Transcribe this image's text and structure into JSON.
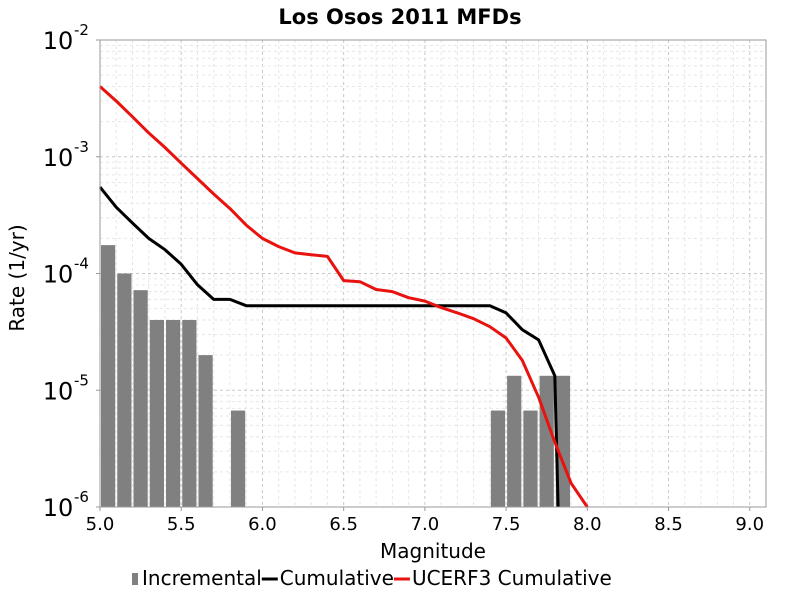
{
  "chart_data": {
    "type": "bar+line",
    "title": "Los Osos 2011 MFDs",
    "xlabel": "Magnitude",
    "ylabel": "Rate (1/yr)",
    "xlim": [
      5.0,
      9.1
    ],
    "ylim": [
      1e-06,
      0.01
    ],
    "yscale": "log",
    "grid": true,
    "legend_position": "bottom",
    "xticks": [
      "5.0",
      "5.5",
      "6.0",
      "6.5",
      "7.0",
      "7.5",
      "8.0",
      "8.5",
      "9.0"
    ],
    "yticks": [
      {
        "base": "10",
        "exp": "-6"
      },
      {
        "base": "10",
        "exp": "-5"
      },
      {
        "base": "10",
        "exp": "-4"
      },
      {
        "base": "10",
        "exp": "-3"
      },
      {
        "base": "10",
        "exp": "-2"
      }
    ],
    "series": [
      {
        "name": "Incremental",
        "kind": "bar",
        "color": "#808080",
        "bin_width": 0.1,
        "points": [
          [
            5.05,
            0.000175
          ],
          [
            5.15,
            0.0001
          ],
          [
            5.25,
            7.2e-05
          ],
          [
            5.35,
            4e-05
          ],
          [
            5.45,
            4e-05
          ],
          [
            5.55,
            4e-05
          ],
          [
            5.65,
            2e-05
          ],
          [
            5.85,
            6.7e-06
          ],
          [
            7.45,
            6.7e-06
          ],
          [
            7.55,
            1.33e-05
          ],
          [
            7.65,
            6.7e-06
          ],
          [
            7.75,
            1.33e-05
          ],
          [
            7.85,
            1.33e-05
          ]
        ]
      },
      {
        "name": "Cumulative",
        "kind": "line",
        "color": "#000000",
        "points": [
          [
            5.0,
            0.00055
          ],
          [
            5.1,
            0.00037
          ],
          [
            5.2,
            0.00027
          ],
          [
            5.3,
            0.0002
          ],
          [
            5.4,
            0.00016
          ],
          [
            5.5,
            0.00012
          ],
          [
            5.6,
            8e-05
          ],
          [
            5.7,
            6e-05
          ],
          [
            5.8,
            6e-05
          ],
          [
            5.9,
            5.3e-05
          ],
          [
            6.0,
            5.3e-05
          ],
          [
            6.5,
            5.3e-05
          ],
          [
            7.0,
            5.3e-05
          ],
          [
            7.4,
            5.3e-05
          ],
          [
            7.5,
            4.6e-05
          ],
          [
            7.6,
            3.3e-05
          ],
          [
            7.7,
            2.7e-05
          ],
          [
            7.8,
            1.33e-05
          ],
          [
            7.82,
            1e-06
          ]
        ]
      },
      {
        "name": "UCERF3 Cumulative",
        "kind": "line",
        "color": "#e8120f",
        "points": [
          [
            5.0,
            0.004
          ],
          [
            5.1,
            0.003
          ],
          [
            5.2,
            0.0022
          ],
          [
            5.3,
            0.0016
          ],
          [
            5.4,
            0.0012
          ],
          [
            5.5,
            0.00088
          ],
          [
            5.6,
            0.00065
          ],
          [
            5.7,
            0.00048
          ],
          [
            5.8,
            0.00036
          ],
          [
            5.9,
            0.00026
          ],
          [
            6.0,
            0.0002
          ],
          [
            6.1,
            0.00017
          ],
          [
            6.2,
            0.00015
          ],
          [
            6.3,
            0.000145
          ],
          [
            6.4,
            0.00014
          ],
          [
            6.5,
            8.7e-05
          ],
          [
            6.6,
            8.5e-05
          ],
          [
            6.7,
            7.3e-05
          ],
          [
            6.8,
            7e-05
          ],
          [
            6.9,
            6.2e-05
          ],
          [
            7.0,
            5.8e-05
          ],
          [
            7.1,
            5.1e-05
          ],
          [
            7.2,
            4.6e-05
          ],
          [
            7.3,
            4.1e-05
          ],
          [
            7.4,
            3.5e-05
          ],
          [
            7.5,
            2.8e-05
          ],
          [
            7.6,
            1.8e-05
          ],
          [
            7.7,
            8.7e-06
          ],
          [
            7.8,
            3.6e-06
          ],
          [
            7.9,
            1.6e-06
          ],
          [
            8.0,
            1e-06
          ]
        ]
      }
    ]
  }
}
